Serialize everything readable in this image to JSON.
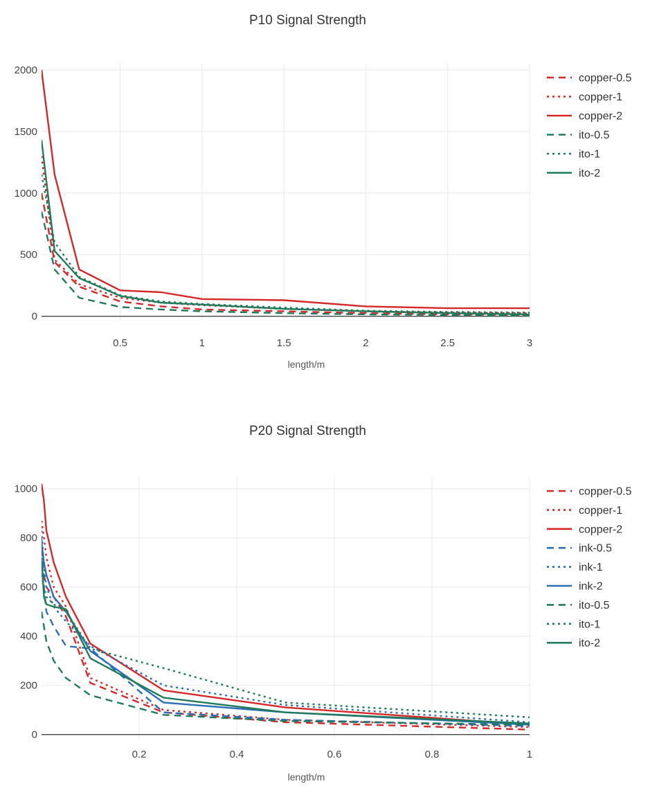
{
  "chart_data": [
    {
      "type": "line",
      "title": "P10 Signal Strength",
      "xlabel": "length/m",
      "ylabel": "",
      "xlim": [
        0.02,
        3.0
      ],
      "ylim": [
        -30,
        2050
      ],
      "xticks": [
        0.5,
        1,
        1.5,
        2,
        2.5,
        3
      ],
      "xtick_labels": [
        "0.5",
        "1",
        "1.5",
        "2",
        "2.5",
        "3"
      ],
      "yticks": [
        0,
        500,
        1000,
        1500,
        2000
      ],
      "ytick_labels": [
        "0",
        "500",
        "1000",
        "1500",
        "2000"
      ],
      "grid": true,
      "legend_position": "top-right-outside",
      "x": [
        0.02,
        0.1,
        0.25,
        0.5,
        0.75,
        1.0,
        1.5,
        2.0,
        2.5,
        3.0
      ],
      "series": [
        {
          "name": "copper-0.5",
          "color": "#d62728",
          "dash": "dash",
          "values": [
            1000,
            440,
            240,
            120,
            80,
            55,
            40,
            25,
            15,
            10
          ]
        },
        {
          "name": "copper-1",
          "color": "#d62728",
          "dash": "dot",
          "values": [
            1300,
            460,
            260,
            150,
            110,
            90,
            60,
            40,
            30,
            25
          ]
        },
        {
          "name": "copper-2",
          "color": "#d62728",
          "dash": "solid",
          "values": [
            2000,
            1150,
            380,
            210,
            195,
            140,
            130,
            80,
            65,
            65
          ]
        },
        {
          "name": "ito-0.5",
          "color": "#1f7a5a",
          "dash": "dash",
          "values": [
            850,
            380,
            150,
            75,
            55,
            40,
            25,
            15,
            10,
            5
          ]
        },
        {
          "name": "ito-1",
          "color": "#1f7a5a",
          "dash": "dot",
          "values": [
            1150,
            600,
            320,
            170,
            120,
            100,
            70,
            45,
            35,
            30
          ]
        },
        {
          "name": "ito-2",
          "color": "#1f7a5a",
          "dash": "solid",
          "values": [
            1430,
            530,
            310,
            165,
            110,
            95,
            60,
            40,
            25,
            15
          ]
        }
      ]
    },
    {
      "type": "line",
      "title": "P20 Signal Strength",
      "xlabel": "length/m",
      "ylabel": "",
      "xlim": [
        0.0,
        1.0
      ],
      "ylim": [
        -15,
        1050
      ],
      "xticks": [
        0.2,
        0.4,
        0.6,
        0.8,
        1
      ],
      "xtick_labels": [
        "0.2",
        "0.4",
        "0.6",
        "0.8",
        "1"
      ],
      "yticks": [
        0,
        200,
        400,
        600,
        800,
        1000
      ],
      "ytick_labels": [
        "0",
        "200",
        "400",
        "600",
        "800",
        "1000"
      ],
      "grid": true,
      "legend_position": "top-right-outside",
      "x": [
        0.0,
        0.005,
        0.01,
        0.025,
        0.05,
        0.1,
        0.25,
        0.5,
        1.0
      ],
      "series": [
        {
          "name": "copper-0.5",
          "color": "#d62728",
          "dash": "dash",
          "values": [
            700,
            650,
            600,
            560,
            480,
            210,
            90,
            50,
            20
          ]
        },
        {
          "name": "copper-1",
          "color": "#d62728",
          "dash": "dot",
          "values": [
            870,
            800,
            720,
            600,
            520,
            230,
            100,
            60,
            30
          ]
        },
        {
          "name": "copper-2",
          "color": "#d62728",
          "dash": "solid",
          "values": [
            1020,
            950,
            830,
            700,
            560,
            370,
            180,
            110,
            40
          ]
        },
        {
          "name": "ink-0.5",
          "color": "#2a6fb8",
          "dash": "dash",
          "values": [
            800,
            600,
            500,
            440,
            360,
            350,
            90,
            60,
            35
          ]
        },
        {
          "name": "ink-1",
          "color": "#2a6fb8",
          "dash": "dot",
          "values": [
            830,
            680,
            600,
            520,
            460,
            360,
            200,
            120,
            50
          ]
        },
        {
          "name": "ink-2",
          "color": "#2a6fb8",
          "dash": "solid",
          "values": [
            780,
            700,
            650,
            560,
            500,
            340,
            130,
            90,
            40
          ]
        },
        {
          "name": "ito-0.5",
          "color": "#1f7a5a",
          "dash": "dash",
          "values": [
            500,
            440,
            380,
            300,
            230,
            160,
            80,
            55,
            40
          ]
        },
        {
          "name": "ito-1",
          "color": "#1f7a5a",
          "dash": "dot",
          "values": [
            650,
            600,
            560,
            530,
            500,
            350,
            270,
            130,
            70
          ]
        },
        {
          "name": "ito-2",
          "color": "#1f7a5a",
          "dash": "solid",
          "values": [
            720,
            560,
            530,
            520,
            510,
            310,
            150,
            90,
            45
          ]
        }
      ]
    }
  ]
}
